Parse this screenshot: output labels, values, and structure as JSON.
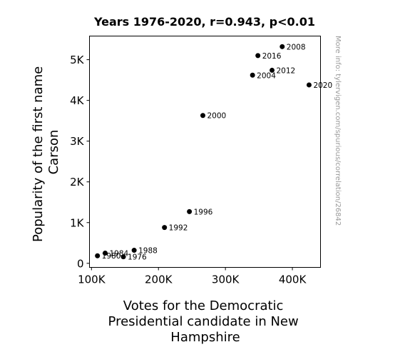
{
  "chart_data": {
    "type": "scatter",
    "title": "Years 1976-2020, r=0.943, p<0.01",
    "xlabel_lines": [
      "Votes for the Democratic",
      "Presidential candidate in New",
      "Hampshire"
    ],
    "ylabel_lines": [
      "Popularity of the first name",
      "Carson"
    ],
    "xlim": [
      97000,
      442000
    ],
    "ylim": [
      -100,
      5580
    ],
    "xticks": [
      {
        "value": 100000,
        "label": "100K"
      },
      {
        "value": 200000,
        "label": "200K"
      },
      {
        "value": 300000,
        "label": "300K"
      },
      {
        "value": 400000,
        "label": "400K"
      }
    ],
    "yticks": [
      {
        "value": 0,
        "label": "0"
      },
      {
        "value": 1000,
        "label": "1K"
      },
      {
        "value": 2000,
        "label": "2K"
      },
      {
        "value": 3000,
        "label": "3K"
      },
      {
        "value": 4000,
        "label": "4K"
      },
      {
        "value": 5000,
        "label": "5K"
      }
    ],
    "points": [
      {
        "label": "1976",
        "x": 147600,
        "y": 160
      },
      {
        "label": "1980",
        "x": 108900,
        "y": 185
      },
      {
        "label": "1984",
        "x": 120400,
        "y": 250
      },
      {
        "label": "1988",
        "x": 163700,
        "y": 320
      },
      {
        "label": "1992",
        "x": 209000,
        "y": 880
      },
      {
        "label": "1996",
        "x": 246200,
        "y": 1270
      },
      {
        "label": "2000",
        "x": 266300,
        "y": 3630
      },
      {
        "label": "2004",
        "x": 340500,
        "y": 4620
      },
      {
        "label": "2008",
        "x": 384800,
        "y": 5320
      },
      {
        "label": "2012",
        "x": 369600,
        "y": 4740
      },
      {
        "label": "2016",
        "x": 348500,
        "y": 5100
      },
      {
        "label": "2020",
        "x": 424900,
        "y": 4380
      }
    ],
    "marker_color": "#000000",
    "grid": false,
    "watermark": "More info: tylervigen.com/spurious/correlation/26842"
  }
}
